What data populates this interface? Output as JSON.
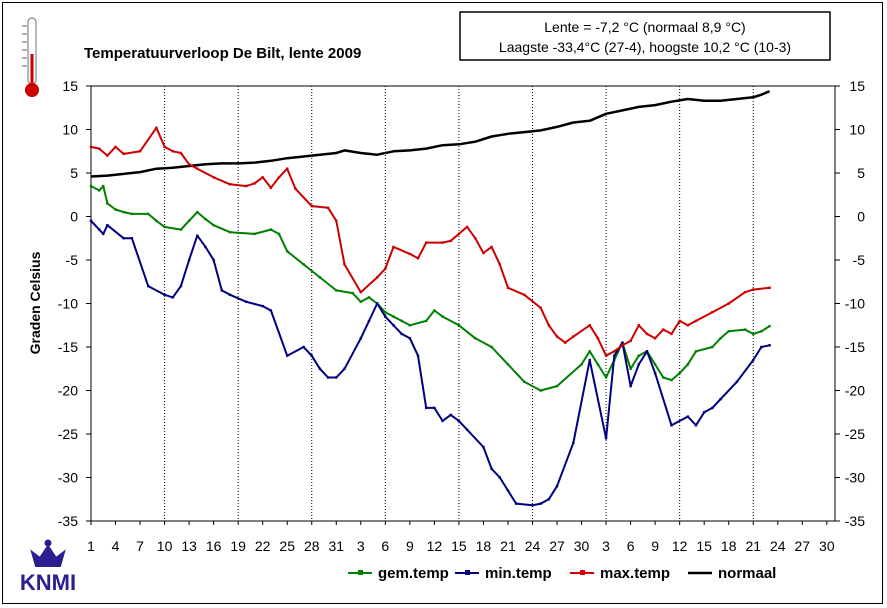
{
  "chart_data": {
    "type": "line",
    "title": "Temperatuurverloop De Bilt, lente 2009",
    "ylabel": "Graden Celsius",
    "ylim": [
      -35,
      15
    ],
    "yticks": [
      15,
      10,
      5,
      0,
      -5,
      -10,
      -15,
      -20,
      -25,
      -30,
      -35
    ],
    "x_tick_labels": [
      "1",
      "4",
      "7",
      "10",
      "13",
      "16",
      "19",
      "22",
      "25",
      "28",
      "31",
      "3",
      "6",
      "9",
      "12",
      "15",
      "18",
      "21",
      "24",
      "27",
      "30",
      "3",
      "6",
      "9",
      "12",
      "15",
      "18",
      "21",
      "24",
      "27",
      "30"
    ],
    "x_range": [
      1,
      92
    ],
    "legend_position": "bottom",
    "info_box": {
      "line1": "Lente = -7,2 °C (normaal 8,9 °C)",
      "line2": "Laagste -33,4°C (27-4), hoogste  10,2 °C (10-3)"
    },
    "series": [
      {
        "name": "gem.temp",
        "color": "#008000",
        "markers": true,
        "points": [
          [
            1,
            3.5
          ],
          [
            2,
            3
          ],
          [
            2.5,
            3.5
          ],
          [
            3,
            1.5
          ],
          [
            4,
            0.8
          ],
          [
            5,
            0.5
          ],
          [
            6,
            0.3
          ],
          [
            8,
            0.3
          ],
          [
            9,
            -0.5
          ],
          [
            10,
            -1.2
          ],
          [
            12,
            -1.5
          ],
          [
            13,
            -0.5
          ],
          [
            14,
            0.5
          ],
          [
            15,
            -0.3
          ],
          [
            16,
            -1
          ],
          [
            18,
            -1.8
          ],
          [
            21,
            -2
          ],
          [
            23,
            -1.5
          ],
          [
            24,
            -2
          ],
          [
            25,
            -4
          ],
          [
            27,
            -5.5
          ],
          [
            29,
            -7
          ],
          [
            31,
            -8.5
          ],
          [
            33,
            -8.8
          ],
          [
            34,
            -9.8
          ],
          [
            35,
            -9.3
          ],
          [
            36,
            -10
          ],
          [
            37,
            -11
          ],
          [
            38,
            -11.5
          ],
          [
            39,
            -12
          ],
          [
            40,
            -12.5
          ],
          [
            42,
            -12
          ],
          [
            43,
            -10.8
          ],
          [
            44,
            -11.5
          ],
          [
            46,
            -12.5
          ],
          [
            48,
            -14
          ],
          [
            50,
            -15
          ],
          [
            52,
            -17
          ],
          [
            54,
            -19
          ],
          [
            56,
            -20
          ],
          [
            58,
            -19.5
          ],
          [
            61,
            -17
          ],
          [
            62,
            -15.5
          ],
          [
            63,
            -17
          ],
          [
            64,
            -18.5
          ],
          [
            65,
            -16.5
          ],
          [
            66,
            -14.5
          ],
          [
            67,
            -17.5
          ],
          [
            68,
            -16
          ],
          [
            69,
            -15.5
          ],
          [
            70,
            -17
          ],
          [
            71,
            -18.5
          ],
          [
            72,
            -18.8
          ],
          [
            73,
            -18
          ],
          [
            74,
            -17
          ],
          [
            75,
            -15.5
          ],
          [
            77,
            -15
          ],
          [
            78,
            -14
          ],
          [
            79,
            -13.2
          ],
          [
            81,
            -13
          ],
          [
            82,
            -13.5
          ],
          [
            83,
            -13.2
          ],
          [
            84,
            -12.6
          ]
        ]
      },
      {
        "name": "min.temp",
        "color": "#000080",
        "markers": true,
        "points": [
          [
            1,
            -0.5
          ],
          [
            2,
            -1.5
          ],
          [
            2.5,
            -2
          ],
          [
            3,
            -1
          ],
          [
            5,
            -2.5
          ],
          [
            6,
            -2.5
          ],
          [
            8,
            -8
          ],
          [
            10,
            -9
          ],
          [
            11,
            -9.3
          ],
          [
            12,
            -8
          ],
          [
            13,
            -5
          ],
          [
            14,
            -2.2
          ],
          [
            15,
            -3.5
          ],
          [
            16,
            -5
          ],
          [
            17,
            -8.5
          ],
          [
            18,
            -9
          ],
          [
            20,
            -9.8
          ],
          [
            22,
            -10.3
          ],
          [
            23,
            -10.8
          ],
          [
            25,
            -16
          ],
          [
            27,
            -15
          ],
          [
            28,
            -16
          ],
          [
            29,
            -17.5
          ],
          [
            30,
            -18.5
          ],
          [
            31,
            -18.5
          ],
          [
            32,
            -17.5
          ],
          [
            34,
            -14
          ],
          [
            35,
            -12
          ],
          [
            36,
            -10
          ],
          [
            37,
            -11.5
          ],
          [
            38,
            -12.5
          ],
          [
            39,
            -13.5
          ],
          [
            40,
            -14
          ],
          [
            41,
            -16
          ],
          [
            42,
            -22
          ],
          [
            43,
            -22
          ],
          [
            44,
            -23.5
          ],
          [
            45,
            -22.8
          ],
          [
            46,
            -23.5
          ],
          [
            47,
            -24.5
          ],
          [
            49,
            -26.5
          ],
          [
            50,
            -29
          ],
          [
            51,
            -30
          ],
          [
            52,
            -31.5
          ],
          [
            53,
            -33
          ],
          [
            55,
            -33.2
          ],
          [
            56,
            -33
          ],
          [
            57,
            -32.5
          ],
          [
            58,
            -31
          ],
          [
            60,
            -26
          ],
          [
            62,
            -16.5
          ],
          [
            64,
            -25.5
          ],
          [
            65,
            -16
          ],
          [
            66,
            -14.5
          ],
          [
            67,
            -19.5
          ],
          [
            68,
            -17
          ],
          [
            69,
            -15.5
          ],
          [
            70,
            -18
          ],
          [
            72,
            -24
          ],
          [
            74,
            -23
          ],
          [
            75,
            -24
          ],
          [
            76,
            -22.5
          ],
          [
            77,
            -22
          ],
          [
            78,
            -21
          ],
          [
            80,
            -19
          ],
          [
            82,
            -16.5
          ],
          [
            83,
            -15
          ],
          [
            84,
            -14.8
          ]
        ]
      },
      {
        "name": "max.temp",
        "color": "#cc0000",
        "markers": true,
        "points": [
          [
            1,
            8
          ],
          [
            2,
            7.8
          ],
          [
            3,
            7
          ],
          [
            4,
            8
          ],
          [
            5,
            7.2
          ],
          [
            7,
            7.5
          ],
          [
            9,
            10.2
          ],
          [
            10,
            8
          ],
          [
            11,
            7.5
          ],
          [
            12,
            7.3
          ],
          [
            13,
            6
          ],
          [
            14,
            5.5
          ],
          [
            16,
            4.5
          ],
          [
            18,
            3.7
          ],
          [
            20,
            3.5
          ],
          [
            21,
            3.8
          ],
          [
            22,
            4.5
          ],
          [
            23,
            3.3
          ],
          [
            24,
            4.5
          ],
          [
            25,
            5.5
          ],
          [
            26,
            3.2
          ],
          [
            28,
            1.2
          ],
          [
            30,
            1
          ],
          [
            31,
            -0.5
          ],
          [
            32,
            -5.5
          ],
          [
            34,
            -8.7
          ],
          [
            36,
            -7
          ],
          [
            37,
            -6
          ],
          [
            38,
            -3.5
          ],
          [
            40,
            -4.3
          ],
          [
            41,
            -4.8
          ],
          [
            42,
            -3
          ],
          [
            44,
            -3
          ],
          [
            45,
            -2.8
          ],
          [
            46,
            -2
          ],
          [
            47,
            -1.2
          ],
          [
            48,
            -2.5
          ],
          [
            49,
            -4.2
          ],
          [
            50,
            -3.5
          ],
          [
            51,
            -5.5
          ],
          [
            52,
            -8.2
          ],
          [
            54,
            -9
          ],
          [
            56,
            -10.5
          ],
          [
            57,
            -12.5
          ],
          [
            58,
            -13.8
          ],
          [
            59,
            -14.5
          ],
          [
            60,
            -13.8
          ],
          [
            62,
            -12.5
          ],
          [
            63,
            -14
          ],
          [
            64,
            -16
          ],
          [
            65,
            -15.5
          ],
          [
            66,
            -14.8
          ],
          [
            67,
            -14.3
          ],
          [
            68,
            -12.5
          ],
          [
            69,
            -13.5
          ],
          [
            70,
            -14
          ],
          [
            71,
            -13
          ],
          [
            72,
            -13.5
          ],
          [
            73,
            -12
          ],
          [
            74,
            -12.5
          ],
          [
            75,
            -12
          ],
          [
            77,
            -11
          ],
          [
            79,
            -10
          ],
          [
            81,
            -8.7
          ],
          [
            82,
            -8.4
          ],
          [
            84,
            -8.2
          ]
        ]
      },
      {
        "name": "normaal",
        "color": "#000000",
        "markers": false,
        "points": [
          [
            1,
            4.6
          ],
          [
            3,
            4.7
          ],
          [
            5,
            4.9
          ],
          [
            7,
            5.1
          ],
          [
            9,
            5.5
          ],
          [
            11,
            5.6
          ],
          [
            13,
            5.8
          ],
          [
            15,
            6
          ],
          [
            17,
            6.1
          ],
          [
            19,
            6.1
          ],
          [
            21,
            6.2
          ],
          [
            23,
            6.4
          ],
          [
            25,
            6.7
          ],
          [
            27,
            6.9
          ],
          [
            29,
            7.1
          ],
          [
            31,
            7.3
          ],
          [
            32,
            7.6
          ],
          [
            34,
            7.3
          ],
          [
            36,
            7.1
          ],
          [
            38,
            7.5
          ],
          [
            40,
            7.6
          ],
          [
            42,
            7.8
          ],
          [
            44,
            8.2
          ],
          [
            46,
            8.3
          ],
          [
            48,
            8.6
          ],
          [
            50,
            9.2
          ],
          [
            52,
            9.5
          ],
          [
            54,
            9.7
          ],
          [
            56,
            9.9
          ],
          [
            58,
            10.3
          ],
          [
            60,
            10.8
          ],
          [
            62,
            11
          ],
          [
            64,
            11.8
          ],
          [
            66,
            12.2
          ],
          [
            68,
            12.6
          ],
          [
            70,
            12.8
          ],
          [
            72,
            13.2
          ],
          [
            74,
            13.5
          ],
          [
            76,
            13.3
          ],
          [
            78,
            13.3
          ],
          [
            80,
            13.5
          ],
          [
            82,
            13.7
          ],
          [
            83,
            14
          ],
          [
            84,
            14.4
          ]
        ]
      }
    ]
  },
  "logo": {
    "text": "KNMI",
    "crown_color": "#2b1f8f"
  },
  "thermometer": {
    "color": "#cc0000"
  }
}
